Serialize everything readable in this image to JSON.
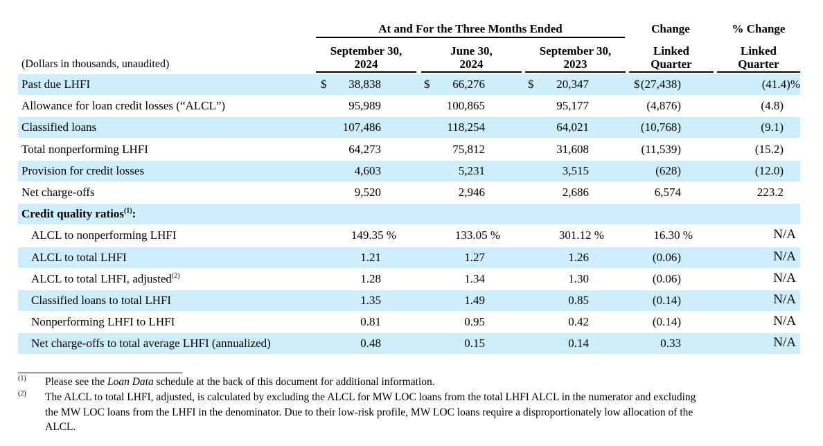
{
  "header": {
    "group_title": "At and For the Three Months Ended",
    "change_title": "Change",
    "pct_change_title": "% Change",
    "unit_note": "(Dollars in thousands, unaudited)",
    "col1": [
      "September 30,",
      "2024"
    ],
    "col2": [
      "June 30,",
      "2024"
    ],
    "col3": [
      "September 30,",
      "2023"
    ],
    "col4": [
      "Linked",
      "Quarter"
    ],
    "col5": [
      "Linked",
      "Quarter"
    ]
  },
  "rows": [
    {
      "label": "Past due LHFI",
      "c1": "38,838",
      "c2": "66,276",
      "c3": "20,347",
      "c4": "(27,438)",
      "c5": "(41.4)%",
      "cur": "$"
    },
    {
      "label": "Allowance for loan credit losses (“ALCL”)",
      "c1": "95,989",
      "c2": "100,865",
      "c3": "95,177",
      "c4": "(4,876)",
      "c5": "(4.8)"
    },
    {
      "label": "Classified loans",
      "c1": "107,486",
      "c2": "118,254",
      "c3": "64,021",
      "c4": "(10,768)",
      "c5": "(9.1)"
    },
    {
      "label": "Total nonperforming LHFI",
      "c1": "64,273",
      "c2": "75,812",
      "c3": "31,608",
      "c4": "(11,539)",
      "c5": "(15.2)"
    },
    {
      "label": "Provision for credit losses",
      "c1": "4,603",
      "c2": "5,231",
      "c3": "3,515",
      "c4": "(628)",
      "c5": "(12.0)"
    },
    {
      "label": "Net charge-offs",
      "c1": "9,520",
      "c2": "2,946",
      "c3": "2,686",
      "c4": "6,574",
      "c5": "223.2"
    },
    {
      "label": "Credit quality ratios",
      "sup": "(1)",
      "suffix": ":",
      "bold": true
    },
    {
      "label": "ALCL to nonperforming LHFI",
      "c1": "149.35 %",
      "c2": "133.05 %",
      "c3": "301.12 %",
      "c4": "16.30 %",
      "c5": "N/A",
      "indent": true
    },
    {
      "label": "ALCL to total LHFI",
      "c1": "1.21",
      "c2": "1.27",
      "c3": "1.26",
      "c4": "(0.06)",
      "c5": "N/A",
      "indent": true
    },
    {
      "label": "ALCL to total LHFI, adjusted",
      "sup": "(2)",
      "c1": "1.28",
      "c2": "1.34",
      "c3": "1.30",
      "c4": "(0.06)",
      "c5": "N/A",
      "indent": true
    },
    {
      "label": "Classified loans to total LHFI",
      "c1": "1.35",
      "c2": "1.49",
      "c3": "0.85",
      "c4": "(0.14)",
      "c5": "N/A",
      "indent": true
    },
    {
      "label": "Nonperforming LHFI to LHFI",
      "c1": "0.81",
      "c2": "0.95",
      "c3": "0.42",
      "c4": "(0.14)",
      "c5": "N/A",
      "indent": true
    },
    {
      "label": "Net charge-offs to total average LHFI (annualized)",
      "c1": "0.48",
      "c2": "0.15",
      "c3": "0.14",
      "c4": "0.33",
      "c5": "N/A",
      "indent": true
    }
  ],
  "footnotes": {
    "fn1_mark": "(1)",
    "fn1_pre": "Please see the ",
    "fn1_em": "Loan Data",
    "fn1_post": " schedule at the back of this document for additional information.",
    "fn2_mark": "(2)",
    "fn2_lines": [
      "The ALCL to total LHFI, adjusted, is calculated by excluding the ALCL for MW LOC loans from the total LHFI ALCL in the numerator and excluding",
      "the MW LOC loans from the LHFI in the denominator. Due to their low-risk profile, MW LOC loans require a disproportionately low allocation of the",
      "ALCL."
    ]
  }
}
